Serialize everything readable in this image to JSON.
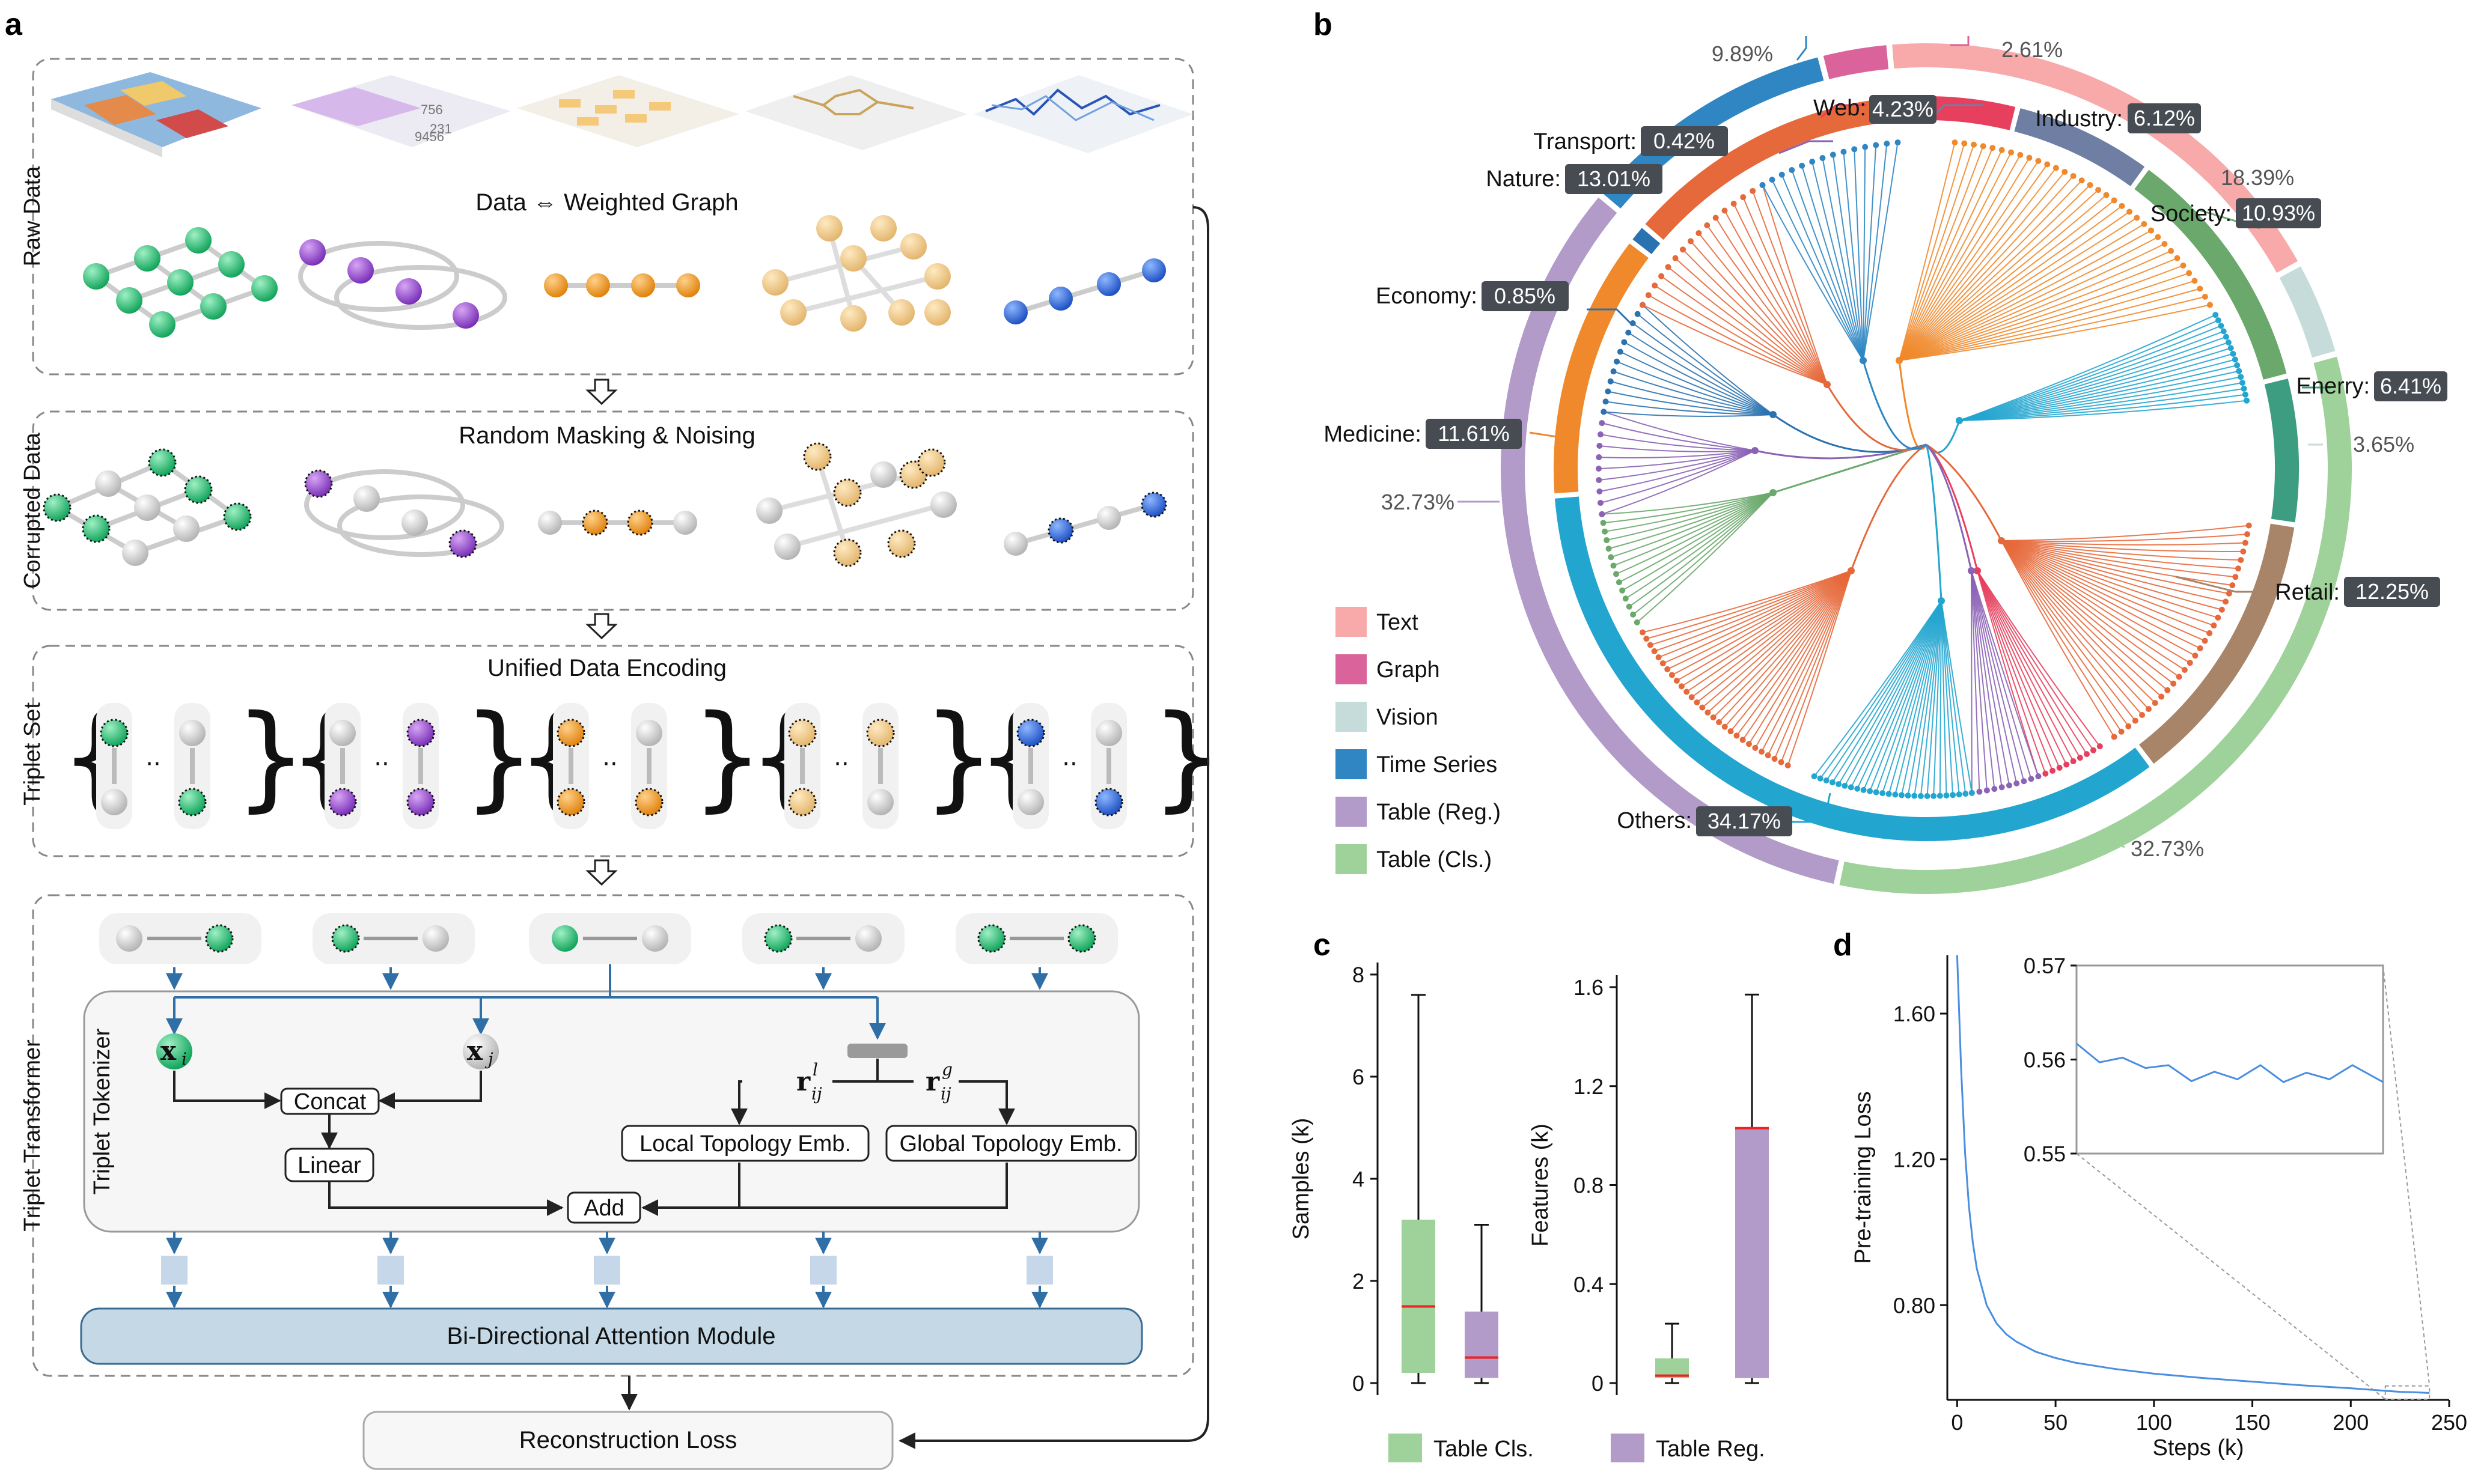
{
  "panels": {
    "a": "a",
    "b": "b",
    "c": "c",
    "d": "d"
  },
  "panel_a": {
    "stage_raw": {
      "side": "Raw Data",
      "caption": "Data ⇔ Weighted Graph"
    },
    "stage_corrupted": {
      "side": "Corrupted Data",
      "caption": "Random Masking & Noising"
    },
    "stage_triplet": {
      "side": "Triplet Set",
      "caption": "Unified Data Encoding"
    },
    "stage_transformer": {
      "side": "Triplet Transformer",
      "tokenizer_side": "Triplet Tokenizer",
      "xi": "x",
      "xi_sub": "i",
      "xj": "x",
      "xj_sub": "j",
      "rl": "r",
      "rl_sup": "l",
      "rl_sub": "ij",
      "rg": "r",
      "rg_sup": "g",
      "rg_sub": "ij",
      "concat": "Concat",
      "linear": "Linear",
      "local_emb": "Local Topology Emb.",
      "global_emb": "Global Topology Emb.",
      "add": "Add",
      "attention": "Bi-Directional Attention Module"
    },
    "loss": "Reconstruction Loss",
    "raw_sample_values": [
      "756",
      "231",
      "9456",
      "5"
    ]
  },
  "panel_b": {
    "outer_ring": [
      {
        "label": "9.89%",
        "color": "#2f86c3"
      },
      {
        "label": "2.61%",
        "color": "#d9639a"
      },
      {
        "label": "18.39%",
        "color": "#f8a9aa"
      },
      {
        "label": "3.65%",
        "color": "#c5dcdb"
      },
      {
        "label": "32.73%",
        "color": "#9fd19a"
      },
      {
        "label": "32.73%",
        "color": "#b29ac9"
      }
    ],
    "inner_ring": [
      {
        "name": "Web:",
        "value": "4.23%",
        "color": "#e6405e"
      },
      {
        "name": "Industry:",
        "value": "6.12%",
        "color": "#6e7fa3"
      },
      {
        "name": "Society:",
        "value": "10.93%",
        "color": "#6aa86c"
      },
      {
        "name": "Enerry:",
        "value": "6.41%",
        "color": "#3c9d80"
      },
      {
        "name": "Retail:",
        "value": "12.25%",
        "color": "#a88569"
      },
      {
        "name": "Others:",
        "value": "34.17%",
        "color": "#22a5cf"
      },
      {
        "name": "Medicine:",
        "value": "11.61%",
        "color": "#f0892c"
      },
      {
        "name": "Economy:",
        "value": "0.85%",
        "color": "#2a72b0"
      },
      {
        "name": "Nature:",
        "value": "13.01%",
        "color": "#e5693b"
      },
      {
        "name": "Transport:",
        "value": "0.42%",
        "color": "#8b62b5"
      }
    ],
    "legend": [
      {
        "label": "Text",
        "color": "#f8a9aa"
      },
      {
        "label": "Graph",
        "color": "#d9639a"
      },
      {
        "label": "Vision",
        "color": "#c5dcdb"
      },
      {
        "label": "Time Series",
        "color": "#2f86c3"
      },
      {
        "label": "Table (Reg.)",
        "color": "#b29ac9"
      },
      {
        "label": "Table (Cls.)",
        "color": "#9fd19a"
      }
    ]
  },
  "chart_data": [
    {
      "type": "box",
      "ylabel": "Samples (k)",
      "yticks": [
        "0",
        "2",
        "4",
        "6",
        "8"
      ],
      "ylim": [
        0,
        8
      ],
      "series": [
        {
          "name": "Table Cls.",
          "min": 0.0,
          "q1": 0.2,
          "median": 1.5,
          "q3": 3.2,
          "max": 7.6,
          "color": "#9fd19a"
        },
        {
          "name": "Table Reg.",
          "min": 0.0,
          "q1": 0.1,
          "median": 0.5,
          "q3": 1.4,
          "max": 3.1,
          "color": "#b29ac9"
        }
      ]
    },
    {
      "type": "box",
      "ylabel": "Features (k)",
      "yticks": [
        "0",
        "0.4",
        "0.8",
        "1.2",
        "1.6"
      ],
      "ylim": [
        0,
        1.6
      ],
      "series": [
        {
          "name": "Table Cls.",
          "min": 0.0,
          "q1": 0.02,
          "median": 0.03,
          "q3": 0.1,
          "max": 0.24,
          "color": "#9fd19a"
        },
        {
          "name": "Table Reg.",
          "min": 0.0,
          "q1": 0.02,
          "median": 1.03,
          "q3": 1.03,
          "max": 1.57,
          "color": "#b29ac9"
        }
      ],
      "legend": [
        "Table Cls.",
        "Table Reg."
      ]
    },
    {
      "type": "line",
      "xlabel": "Steps (k)",
      "ylabel": "Pre-training Loss",
      "xticks": [
        "0",
        "50",
        "100",
        "150",
        "200",
        "250"
      ],
      "yticks": [
        "0.80",
        "1.20",
        "1.60"
      ],
      "xlim": [
        -5,
        250
      ],
      "ylim": [
        0.54,
        1.76
      ],
      "series": [
        {
          "x": [
            0,
            2,
            4,
            6,
            8,
            10,
            15,
            20,
            25,
            30,
            40,
            50,
            60,
            80,
            100,
            125,
            150,
            175,
            200,
            215,
            225,
            232,
            240
          ],
          "y": [
            1.76,
            1.45,
            1.22,
            1.07,
            0.97,
            0.9,
            0.8,
            0.75,
            0.72,
            0.7,
            0.672,
            0.655,
            0.642,
            0.625,
            0.612,
            0.6,
            0.59,
            0.58,
            0.572,
            0.566,
            0.562,
            0.561,
            0.559
          ],
          "color": "#4a8ee0"
        }
      ],
      "inset": {
        "yticks": [
          "0.55",
          "0.56",
          "0.57"
        ],
        "ylim": [
          0.55,
          0.57
        ],
        "xlim": [
          220,
          240
        ],
        "x": [
          220,
          221.5,
          223,
          224.5,
          226,
          227.5,
          229,
          230.5,
          232,
          233.5,
          235,
          236.5,
          238,
          240
        ],
        "y": [
          0.5617,
          0.5597,
          0.5602,
          0.5591,
          0.5594,
          0.5577,
          0.5587,
          0.5579,
          0.5594,
          0.5576,
          0.5586,
          0.5579,
          0.5594,
          0.5576
        ]
      }
    }
  ]
}
